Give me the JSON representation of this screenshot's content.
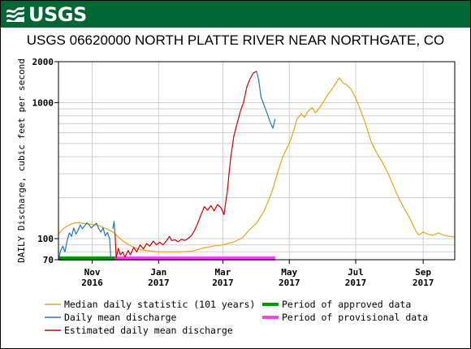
{
  "header": {
    "logo_text": "USGS",
    "banner_color": "#006633"
  },
  "chart_data": {
    "type": "line",
    "title": "USGS 06620000 NORTH PLATTE RIVER NEAR NORTHGATE, CO",
    "ylabel": "DAILY Discharge, cubic feet per second",
    "xlabel": "",
    "yscale": "log",
    "ylim": [
      70,
      2000
    ],
    "xlim": [
      "2016-10-01",
      "2017-09-30"
    ],
    "grid": true,
    "y_ticks": [
      {
        "value": 70,
        "label": "70"
      },
      {
        "value": 100,
        "label": "100"
      },
      {
        "value": 1000,
        "label": "1000"
      },
      {
        "value": 2000,
        "label": "2000"
      }
    ],
    "x_ticks": [
      {
        "date": "2016-11-01",
        "label": "Nov",
        "year": "2016"
      },
      {
        "date": "2017-01-01",
        "label": "Jan",
        "year": "2017"
      },
      {
        "date": "2017-03-01",
        "label": "Mar",
        "year": "2017"
      },
      {
        "date": "2017-05-01",
        "label": "May",
        "year": "2017"
      },
      {
        "date": "2017-07-01",
        "label": "Jul",
        "year": "2017"
      },
      {
        "date": "2017-09-01",
        "label": "Sep",
        "year": "2017"
      }
    ],
    "series": [
      {
        "name": "Median daily statistic (101 years)",
        "color": "#e8a317",
        "points": [
          [
            "2016-10-01",
            108
          ],
          [
            "2016-10-05",
            118
          ],
          [
            "2016-10-10",
            125
          ],
          [
            "2016-10-15",
            130
          ],
          [
            "2016-10-20",
            131
          ],
          [
            "2016-10-25",
            129
          ],
          [
            "2016-10-30",
            128
          ],
          [
            "2016-11-05",
            126
          ],
          [
            "2016-11-10",
            122
          ],
          [
            "2016-11-15",
            117
          ],
          [
            "2016-11-20",
            112
          ],
          [
            "2016-11-25",
            103
          ],
          [
            "2016-11-30",
            95
          ],
          [
            "2016-12-05",
            90
          ],
          [
            "2016-12-10",
            86
          ],
          [
            "2016-12-15",
            83
          ],
          [
            "2016-12-20",
            82
          ],
          [
            "2016-12-25",
            81
          ],
          [
            "2016-12-31",
            80
          ],
          [
            "2017-01-10",
            80
          ],
          [
            "2017-01-20",
            80
          ],
          [
            "2017-02-01",
            81
          ],
          [
            "2017-02-10",
            85
          ],
          [
            "2017-02-20",
            88
          ],
          [
            "2017-03-01",
            90
          ],
          [
            "2017-03-10",
            94
          ],
          [
            "2017-03-18",
            100
          ],
          [
            "2017-03-25",
            115
          ],
          [
            "2017-04-01",
            130
          ],
          [
            "2017-04-08",
            160
          ],
          [
            "2017-04-15",
            220
          ],
          [
            "2017-04-20",
            300
          ],
          [
            "2017-04-25",
            400
          ],
          [
            "2017-05-01",
            500
          ],
          [
            "2017-05-05",
            620
          ],
          [
            "2017-05-08",
            750
          ],
          [
            "2017-05-12",
            830
          ],
          [
            "2017-05-15",
            780
          ],
          [
            "2017-05-18",
            860
          ],
          [
            "2017-05-22",
            920
          ],
          [
            "2017-05-25",
            840
          ],
          [
            "2017-05-28",
            900
          ],
          [
            "2017-06-01",
            1000
          ],
          [
            "2017-06-05",
            1130
          ],
          [
            "2017-06-09",
            1250
          ],
          [
            "2017-06-13",
            1400
          ],
          [
            "2017-06-16",
            1520
          ],
          [
            "2017-06-19",
            1410
          ],
          [
            "2017-06-23",
            1350
          ],
          [
            "2017-06-27",
            1250
          ],
          [
            "2017-07-01",
            1080
          ],
          [
            "2017-07-05",
            900
          ],
          [
            "2017-07-10",
            700
          ],
          [
            "2017-07-15",
            520
          ],
          [
            "2017-07-20",
            430
          ],
          [
            "2017-07-25",
            370
          ],
          [
            "2017-07-31",
            300
          ],
          [
            "2017-08-05",
            240
          ],
          [
            "2017-08-10",
            195
          ],
          [
            "2017-08-15",
            165
          ],
          [
            "2017-08-20",
            140
          ],
          [
            "2017-08-25",
            115
          ],
          [
            "2017-08-28",
            106
          ],
          [
            "2017-09-01",
            112
          ],
          [
            "2017-09-05",
            108
          ],
          [
            "2017-09-10",
            106
          ],
          [
            "2017-09-15",
            110
          ],
          [
            "2017-09-20",
            106
          ],
          [
            "2017-09-25",
            104
          ],
          [
            "2017-09-30",
            103
          ]
        ]
      },
      {
        "name": "Daily mean discharge",
        "color": "#1f77b4",
        "segments": [
          [
            [
              "2016-10-01",
              70
            ],
            [
              "2016-10-03",
              82
            ],
            [
              "2016-10-05",
              88
            ],
            [
              "2016-10-07",
              80
            ],
            [
              "2016-10-09",
              97
            ],
            [
              "2016-10-11",
              110
            ],
            [
              "2016-10-13",
              104
            ],
            [
              "2016-10-15",
              120
            ],
            [
              "2016-10-17",
              108
            ],
            [
              "2016-10-19",
              115
            ],
            [
              "2016-10-21",
              126
            ],
            [
              "2016-10-23",
              118
            ],
            [
              "2016-10-25",
              124
            ],
            [
              "2016-10-27",
              131
            ],
            [
              "2016-10-29",
              127
            ],
            [
              "2016-10-31",
              120
            ],
            [
              "2016-11-02",
              124
            ],
            [
              "2016-11-05",
              130
            ],
            [
              "2016-11-07",
              118
            ],
            [
              "2016-11-09",
              112
            ],
            [
              "2016-11-11",
              120
            ],
            [
              "2016-11-13",
              105
            ],
            [
              "2016-11-15",
              111
            ],
            [
              "2016-11-17",
              100
            ],
            [
              "2016-11-18",
              72
            ]
          ],
          [
            [
              "2016-11-20",
              118
            ],
            [
              "2016-11-21",
              134
            ],
            [
              "2016-11-22",
              108
            ]
          ],
          [
            [
              "2017-04-01",
              1700
            ],
            [
              "2017-04-03",
              1450
            ],
            [
              "2017-04-05",
              1100
            ],
            [
              "2017-04-08",
              950
            ],
            [
              "2017-04-11",
              820
            ],
            [
              "2017-04-14",
              700
            ],
            [
              "2017-04-16",
              650
            ],
            [
              "2017-04-18",
              760
            ]
          ]
        ]
      },
      {
        "name": "Estimated daily mean discharge",
        "color": "#cc0000",
        "points": [
          [
            "2016-11-22",
            108
          ],
          [
            "2016-11-23",
            72
          ],
          [
            "2016-11-25",
            85
          ],
          [
            "2016-11-27",
            76
          ],
          [
            "2016-11-29",
            80
          ],
          [
            "2016-12-01",
            73
          ],
          [
            "2016-12-04",
            82
          ],
          [
            "2016-12-06",
            76
          ],
          [
            "2016-12-09",
            86
          ],
          [
            "2016-12-12",
            80
          ],
          [
            "2016-12-15",
            90
          ],
          [
            "2016-12-18",
            84
          ],
          [
            "2016-12-21",
            92
          ],
          [
            "2016-12-24",
            88
          ],
          [
            "2016-12-27",
            96
          ],
          [
            "2016-12-30",
            90
          ],
          [
            "2017-01-02",
            94
          ],
          [
            "2017-01-05",
            90
          ],
          [
            "2017-01-08",
            96
          ],
          [
            "2017-01-11",
            104
          ],
          [
            "2017-01-13",
            97
          ],
          [
            "2017-01-16",
            98
          ],
          [
            "2017-01-19",
            95
          ],
          [
            "2017-01-22",
            99
          ],
          [
            "2017-01-25",
            97
          ],
          [
            "2017-01-28",
            100
          ],
          [
            "2017-01-31",
            105
          ],
          [
            "2017-02-03",
            115
          ],
          [
            "2017-02-06",
            130
          ],
          [
            "2017-02-09",
            150
          ],
          [
            "2017-02-12",
            172
          ],
          [
            "2017-02-15",
            162
          ],
          [
            "2017-02-18",
            175
          ],
          [
            "2017-02-21",
            160
          ],
          [
            "2017-02-24",
            178
          ],
          [
            "2017-02-27",
            170
          ],
          [
            "2017-03-02",
            150
          ],
          [
            "2017-03-05",
            220
          ],
          [
            "2017-03-08",
            380
          ],
          [
            "2017-03-11",
            560
          ],
          [
            "2017-03-14",
            700
          ],
          [
            "2017-03-17",
            860
          ],
          [
            "2017-03-20",
            1000
          ],
          [
            "2017-03-23",
            1300
          ],
          [
            "2017-03-26",
            1500
          ],
          [
            "2017-03-29",
            1650
          ],
          [
            "2017-04-01",
            1700
          ]
        ]
      }
    ],
    "periods": [
      {
        "name": "Period of approved data",
        "color": "#009900",
        "start": "2016-10-01",
        "end": "2016-11-22"
      },
      {
        "name": "Period of provisional data",
        "color": "#ee44ee",
        "start": "2016-11-22",
        "end": "2017-04-18"
      }
    ]
  }
}
